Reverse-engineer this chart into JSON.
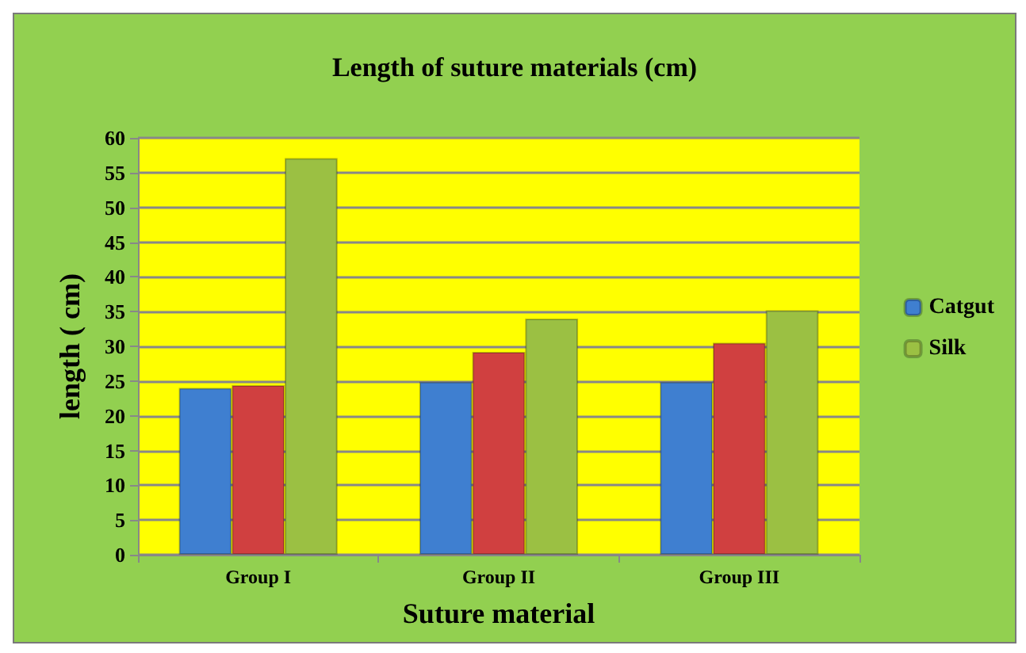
{
  "chart_data": {
    "type": "bar",
    "title": "Length of suture materials (cm)",
    "xlabel": "Suture material",
    "ylabel": "length ( cm)",
    "categories": [
      "Group I",
      "Group II",
      "Group III"
    ],
    "series": [
      {
        "name": "Catgut",
        "color": "#3f7fd0",
        "values": [
          24.0,
          24.9,
          24.9
        ]
      },
      {
        "color": "#d04040",
        "values": [
          24.4,
          29.2,
          30.5
        ]
      },
      {
        "name": "Silk",
        "color": "#9bc043",
        "values": [
          57.1,
          34.0,
          35.2
        ]
      }
    ],
    "ylim": [
      0,
      60
    ],
    "yticks": [
      0,
      5,
      10,
      15,
      20,
      25,
      30,
      35,
      40,
      45,
      50,
      55,
      60
    ],
    "grid": "y",
    "legend": "right"
  }
}
